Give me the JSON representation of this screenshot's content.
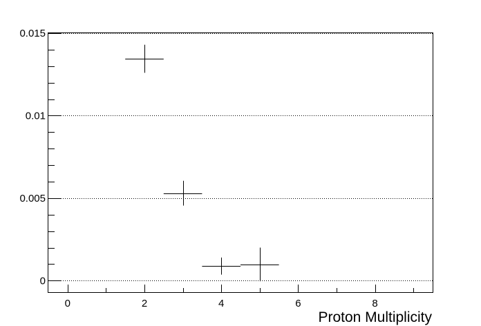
{
  "chart_data": {
    "type": "scatter",
    "title": "",
    "xlabel": "Proton Multiplicity",
    "ylabel": "",
    "xlim": [
      -0.5,
      9.5
    ],
    "ylim": [
      -0.0007,
      0.015
    ],
    "grid": {
      "x": false,
      "y": true,
      "style": "dotted"
    },
    "x_ticks": [
      0,
      2,
      4,
      6,
      8
    ],
    "x_tick_labels": [
      "0",
      "2",
      "4",
      "6",
      "8"
    ],
    "y_ticks": [
      0,
      0.005,
      0.01,
      0.015
    ],
    "y_tick_labels": [
      "0",
      "0.005",
      "0.01",
      "0.015"
    ],
    "series": [
      {
        "points": [
          {
            "x": 2,
            "y": 0.01345,
            "x_err": 0.5,
            "y_err": 0.00085
          },
          {
            "x": 3,
            "y": 0.0053,
            "x_err": 0.5,
            "y_err": 0.00075
          },
          {
            "x": 4,
            "y": 0.00088,
            "x_err": 0.5,
            "y_err": 0.00052
          },
          {
            "x": 5,
            "y": 0.00098,
            "x_err": 0.5,
            "y_err": 0.00102
          }
        ],
        "color": "#000000",
        "marker": "error-cross"
      }
    ]
  }
}
